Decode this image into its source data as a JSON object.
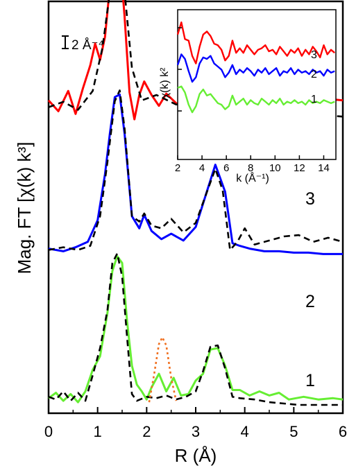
{
  "chart_data": [
    {
      "type": "line",
      "xlabel": "R (Å)",
      "ylabel": "Mag. FT [χ(k) k³]",
      "xlim": [
        0,
        6
      ],
      "x_ticks": [
        "0",
        "1",
        "2",
        "3",
        "4",
        "5",
        "6"
      ],
      "y_ticks_shown": false,
      "scale_bar_label": "2 Å⁻⁴",
      "curve_labels": [
        "3",
        "2",
        "1"
      ],
      "grid": false,
      "colors": {
        "3": "#ff0000",
        "2": "#0000ff",
        "1": "#66ee33",
        "fit": "#000000",
        "extra": "#f07020"
      },
      "series": [
        {
          "label": "3",
          "style": "solid",
          "x": [
            0,
            0.2,
            0.4,
            0.55,
            0.7,
            0.85,
            0.95,
            1.05,
            1.15,
            1.25,
            1.35,
            1.45,
            1.55,
            1.65,
            1.75,
            1.85,
            1.95,
            2.1,
            2.25,
            2.4,
            2.6,
            2.8,
            3.0,
            3.25,
            3.5,
            3.7,
            3.9,
            4.2,
            4.5,
            4.8,
            5.1,
            5.4,
            5.7,
            6.0
          ],
          "y": [
            5.6,
            4.8,
            6.3,
            4.6,
            6.5,
            8.2,
            9.8,
            8.6,
            10.3,
            14.0,
            17.6,
            16.4,
            11.8,
            6.2,
            4.2,
            6.0,
            7.0,
            6.0,
            5.2,
            6.1,
            5.4,
            4.9,
            5.6,
            5.7,
            7.0,
            5.3,
            6.1,
            5.3,
            6.3,
            5.0,
            5.6,
            5.1,
            5.7,
            5.6
          ]
        },
        {
          "label": "3",
          "style": "dashed-fit",
          "x": [
            0,
            0.3,
            0.6,
            0.9,
            1.1,
            1.3,
            1.4,
            1.5,
            1.7,
            1.9,
            2.2,
            2.6,
            3.0,
            3.3,
            3.6,
            3.9,
            4.3,
            4.8,
            5.3,
            6.0
          ],
          "y": [
            5.1,
            5.5,
            4.9,
            6.3,
            9.5,
            15.0,
            17.5,
            15.5,
            8.0,
            5.6,
            6.0,
            5.3,
            5.3,
            6.1,
            6.5,
            5.5,
            5.2,
            4.9,
            4.6,
            4.4
          ]
        },
        {
          "label": "2",
          "style": "solid",
          "x": [
            0,
            0.3,
            0.55,
            0.8,
            1.0,
            1.15,
            1.25,
            1.35,
            1.45,
            1.55,
            1.7,
            1.85,
            1.95,
            2.1,
            2.3,
            2.5,
            2.75,
            3.0,
            3.2,
            3.4,
            3.6,
            3.75,
            3.9,
            4.1,
            4.4,
            4.7,
            5.0,
            5.3,
            5.6,
            6.0
          ],
          "y": [
            3.1,
            2.9,
            3.2,
            3.6,
            5.2,
            8.6,
            11.6,
            14.3,
            14.5,
            11.6,
            5.5,
            4.6,
            5.6,
            4.4,
            3.8,
            4.2,
            3.7,
            4.7,
            7.0,
            9.3,
            7.3,
            3.5,
            3.3,
            3.1,
            2.9,
            2.9,
            2.8,
            2.8,
            2.7,
            2.7
          ]
        },
        {
          "label": "2",
          "style": "dashed-fit",
          "x": [
            0,
            0.3,
            0.6,
            0.85,
            1.05,
            1.2,
            1.35,
            1.45,
            1.55,
            1.7,
            1.85,
            1.95,
            2.1,
            2.3,
            2.5,
            2.75,
            3.0,
            3.2,
            3.4,
            3.55,
            3.7,
            3.85,
            4.0,
            4.2,
            4.5,
            4.8,
            5.1,
            5.4,
            5.7,
            6.0
          ],
          "y": [
            3.0,
            3.2,
            3.0,
            3.3,
            5.5,
            9.5,
            14.0,
            14.8,
            12.0,
            5.5,
            5.1,
            5.7,
            4.8,
            4.6,
            5.3,
            4.3,
            5.0,
            7.0,
            9.0,
            7.4,
            3.0,
            3.6,
            4.6,
            3.4,
            3.7,
            4.0,
            4.1,
            3.6,
            3.9,
            3.6
          ]
        },
        {
          "label": "1",
          "style": "solid",
          "x": [
            0,
            0.15,
            0.3,
            0.45,
            0.6,
            0.75,
            0.9,
            1.05,
            1.2,
            1.3,
            1.4,
            1.5,
            1.6,
            1.7,
            1.8,
            1.9,
            2.0,
            2.1,
            2.25,
            2.4,
            2.55,
            2.7,
            2.85,
            3.0,
            3.15,
            3.3,
            3.45,
            3.6,
            3.75,
            3.9,
            4.1,
            4.3,
            4.5,
            4.7,
            4.9,
            5.2,
            5.5,
            5.8,
            6.0
          ],
          "y": [
            0.5,
            0.9,
            0.3,
            0.8,
            0.2,
            1.0,
            2.6,
            3.6,
            6.8,
            9.9,
            11.0,
            10.5,
            6.2,
            2.9,
            1.5,
            1.0,
            0.4,
            1.3,
            2.3,
            1.0,
            2.0,
            0.7,
            0.8,
            1.8,
            2.3,
            4.1,
            4.2,
            2.9,
            1.1,
            1.1,
            0.7,
            1.0,
            0.7,
            0.9,
            0.4,
            0.6,
            0.4,
            0.5,
            0.4
          ]
        },
        {
          "label": "1",
          "style": "dashed-fit",
          "x": [
            0,
            0.15,
            0.3,
            0.45,
            0.6,
            0.75,
            0.9,
            1.05,
            1.2,
            1.3,
            1.4,
            1.5,
            1.6,
            1.7,
            1.8,
            2.0,
            2.2,
            2.4,
            2.6,
            2.8,
            3.0,
            3.15,
            3.3,
            3.45,
            3.6,
            3.75,
            3.9,
            4.2,
            4.5,
            4.8,
            5.1,
            5.4,
            5.7,
            6.0
          ],
          "y": [
            0.6,
            0.4,
            1.0,
            0.3,
            0.9,
            0.3,
            2.2,
            4.2,
            7.0,
            10.5,
            11.2,
            9.5,
            5.0,
            0.8,
            0.3,
            0.6,
            0.5,
            0.7,
            0.4,
            0.6,
            1.0,
            2.5,
            4.3,
            4.4,
            2.7,
            0.6,
            0.5,
            0.4,
            0.2,
            0.1,
            0.0,
            0.0,
            0.0,
            0.0
          ]
        },
        {
          "label": "",
          "style": "dotted-extra",
          "x": [
            2.05,
            2.15,
            2.25,
            2.32,
            2.4,
            2.5,
            2.6
          ],
          "y": [
            0.2,
            2.2,
            4.5,
            5.0,
            4.4,
            2.0,
            0.3
          ]
        }
      ]
    },
    {
      "type": "line",
      "xlabel": "k (Å⁻¹)",
      "ylabel": "χ(k) k²",
      "xlim": [
        2,
        15
      ],
      "x_ticks": [
        "2",
        "4",
        "6",
        "8",
        "10",
        "12",
        "14"
      ],
      "curve_labels": [
        "3",
        "2",
        "1"
      ],
      "grid": false,
      "series": [
        {
          "label": "3",
          "style": "solid",
          "x": [
            2.0,
            2.3,
            2.6,
            2.9,
            3.2,
            3.5,
            3.8,
            4.1,
            4.4,
            4.7,
            5.0,
            5.3,
            5.6,
            5.9,
            6.2,
            6.5,
            6.8,
            7.1,
            7.4,
            7.7,
            8.0,
            8.3,
            8.6,
            8.9,
            9.2,
            9.5,
            9.8,
            10.1,
            10.4,
            10.7,
            11.0,
            11.3,
            11.6,
            11.9,
            12.2,
            12.5,
            12.8,
            13.1,
            13.4,
            13.7,
            14.0,
            14.3,
            14.6,
            14.9
          ],
          "y": [
            1.6,
            2.4,
            1.3,
            1.2,
            0.2,
            -0.3,
            0.8,
            1.6,
            1.8,
            1.5,
            1.0,
            0.9,
            0.6,
            -0.1,
            0.2,
            1.2,
            0.4,
            0.7,
            0.4,
            0.9,
            0.6,
            0.3,
            0.6,
            0.7,
            0.9,
            0.5,
            0.6,
            0.3,
            0.8,
            0.5,
            0.2,
            0.6,
            0.4,
            0.7,
            0.2,
            0.6,
            0.3,
            0.8,
            0.5,
            0.1,
            0.9,
            0.3,
            0.6,
            0.4
          ]
        },
        {
          "label": "2",
          "style": "solid",
          "x": [
            2.0,
            2.3,
            2.6,
            2.9,
            3.2,
            3.5,
            3.8,
            4.1,
            4.4,
            4.7,
            5.0,
            5.3,
            5.6,
            5.9,
            6.2,
            6.5,
            6.8,
            7.1,
            7.4,
            7.7,
            8.0,
            8.3,
            8.6,
            8.9,
            9.2,
            9.5,
            9.8,
            10.1,
            10.4,
            10.7,
            11.0,
            11.3,
            11.6,
            11.9,
            12.2,
            12.5,
            12.8,
            13.1,
            13.4,
            13.7,
            14.0,
            14.3,
            14.6,
            14.9
          ],
          "y": [
            -0.4,
            0.3,
            0.0,
            -0.8,
            -1.5,
            -1.2,
            -0.3,
            0.1,
            0.0,
            0.2,
            -0.3,
            -0.5,
            -0.7,
            -1.2,
            -0.9,
            -0.4,
            -1.0,
            -0.7,
            -0.9,
            -0.6,
            -0.8,
            -1.1,
            -0.7,
            -0.9,
            -0.6,
            -1.0,
            -0.8,
            -0.6,
            -1.1,
            -0.8,
            -0.9,
            -0.6,
            -1.0,
            -0.7,
            -0.9,
            -0.8,
            -1.0,
            -0.7,
            -0.9,
            -0.8,
            -1.1,
            -0.7,
            -0.9,
            -0.8
          ]
        },
        {
          "label": "1",
          "style": "solid",
          "x": [
            2.0,
            2.3,
            2.6,
            2.9,
            3.2,
            3.5,
            3.8,
            4.1,
            4.4,
            4.7,
            5.0,
            5.3,
            5.6,
            5.9,
            6.2,
            6.5,
            6.8,
            7.1,
            7.4,
            7.7,
            8.0,
            8.3,
            8.6,
            8.9,
            9.2,
            9.5,
            9.8,
            10.1,
            10.4,
            10.7,
            11.0,
            11.3,
            11.6,
            11.9,
            12.2,
            12.5,
            12.8,
            13.1,
            13.4,
            13.7,
            14.0,
            14.3,
            14.6,
            14.9
          ],
          "y": [
            -1.9,
            -1.8,
            -2.2,
            -3.0,
            -3.5,
            -3.1,
            -2.3,
            -2.0,
            -2.4,
            -2.3,
            -2.6,
            -2.9,
            -3.0,
            -3.3,
            -3.1,
            -2.4,
            -3.0,
            -2.8,
            -2.6,
            -3.0,
            -2.7,
            -2.9,
            -3.0,
            -2.6,
            -2.8,
            -3.0,
            -2.7,
            -2.9,
            -2.6,
            -3.0,
            -2.8,
            -2.9,
            -2.7,
            -2.9,
            -2.8,
            -3.0,
            -2.7,
            -2.9,
            -2.8,
            -2.9,
            -2.7,
            -2.8,
            -2.9,
            -2.8
          ]
        }
      ]
    }
  ]
}
